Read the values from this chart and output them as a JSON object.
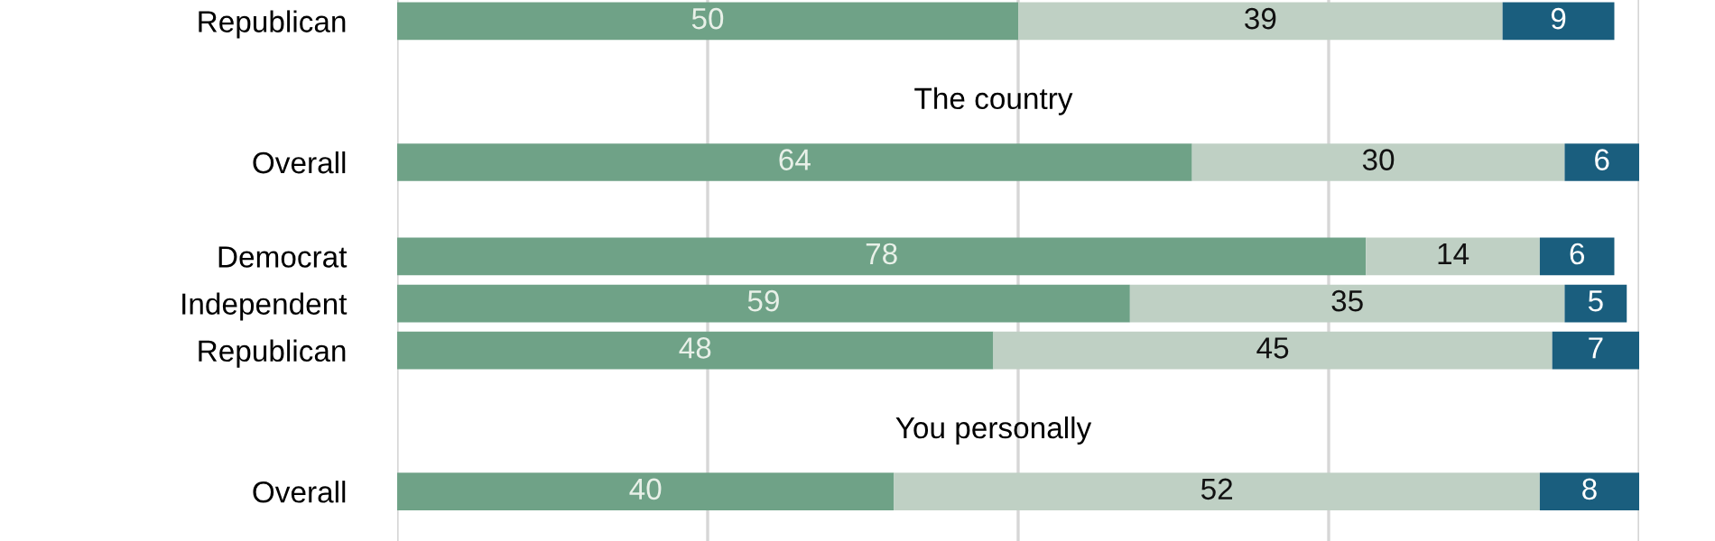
{
  "chart_data": {
    "type": "bar",
    "orientation": "horizontal",
    "stacked": true,
    "data_labels": true,
    "categories": [
      "Republican",
      null,
      null,
      "Overall",
      null,
      "Democrat",
      "Independent",
      "Republican",
      null,
      null,
      "Overall"
    ],
    "series": [
      {
        "color": "#6fa287",
        "values": [
          50,
          null,
          null,
          64,
          null,
          78,
          59,
          48,
          null,
          null,
          40
        ]
      },
      {
        "color": "#bfd0c4",
        "values": [
          39,
          null,
          null,
          30,
          null,
          14,
          35,
          45,
          null,
          null,
          52
        ]
      },
      {
        "color": "#1a5e7e",
        "values": [
          9,
          null,
          null,
          6,
          null,
          6,
          5,
          7,
          null,
          null,
          8
        ]
      }
    ],
    "annotations": [
      "The country",
      "You personally"
    ],
    "xlim": [
      0,
      100
    ],
    "xticks": [
      {
        "value": 0,
        "label": null
      },
      {
        "value": 25,
        "label": null
      },
      {
        "value": 50,
        "label": null
      },
      {
        "value": 75,
        "label": null
      },
      {
        "value": 100,
        "label": null
      }
    ],
    "grid": "x",
    "tick_labels": "y",
    "legend": false
  }
}
